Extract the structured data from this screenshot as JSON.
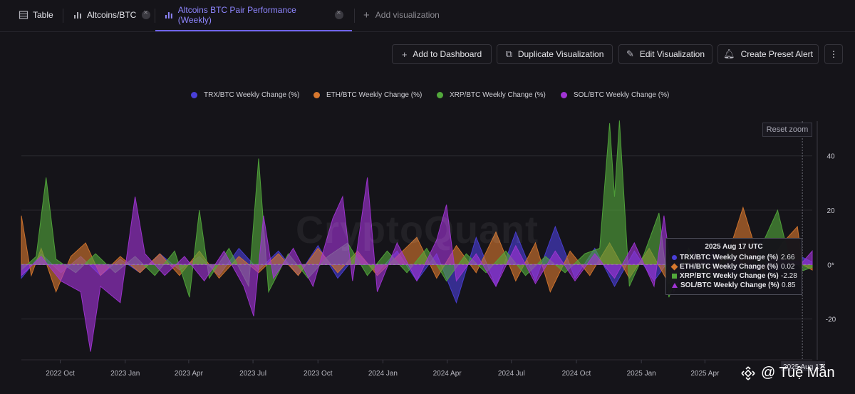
{
  "tabs": [
    {
      "label": "Table",
      "icon": "table-icon"
    },
    {
      "label": "Altcoins/BTC",
      "icon": "bar-chart-icon"
    },
    {
      "label": "Altcoins BTC Pair Performance (Weekly)",
      "icon": "bar-chart-icon",
      "active": true
    },
    {
      "label": "Add visualization",
      "icon": "plus-icon"
    }
  ],
  "toolbar": {
    "add_dashboard": "Add to Dashboard",
    "duplicate": "Duplicate Visualization",
    "edit": "Edit Visualization",
    "alert": "Create Preset Alert",
    "more": "⋮"
  },
  "reset_zoom": "Reset zoom",
  "brand_watermark": "CryptoQuant",
  "watermark": {
    "text": "@ Tuệ Mẫn"
  },
  "tooltip": {
    "title": "2025 Aug 17 UTC",
    "rows": [
      {
        "name": "TRX/BTC Weekly Change (%)",
        "value": "2.66",
        "color": "#4a3fd8"
      },
      {
        "name": "ETH/BTC Weekly Change (%)",
        "value": "0.02",
        "color": "#d6772e"
      },
      {
        "name": "XRP/BTC Weekly Change (%)",
        "value": "-2.28",
        "color": "#52a83b"
      },
      {
        "name": "SOL/BTC Weekly Change (%)",
        "value": "0.85",
        "color": "#a234d6"
      }
    ]
  },
  "chart_data": {
    "type": "area",
    "x_tick_labels": [
      "2022 Oct",
      "2023 Jan",
      "2023 Apr",
      "2023 Jul",
      "2023 Oct",
      "2024 Jan",
      "2024 Apr",
      "2024 Jul",
      "2024 Oct",
      "2025 Jan",
      "2025 Apr"
    ],
    "x_tick_dates": [
      "2022-10-01",
      "2023-01-01",
      "2023-04-01",
      "2023-07-01",
      "2023-10-01",
      "2024-01-01",
      "2024-04-01",
      "2024-07-01",
      "2024-10-01",
      "2025-01-01",
      "2025-04-01"
    ],
    "crosshair_label": "2025 Aug 17",
    "y_ticks": [
      40,
      20,
      0,
      -20
    ],
    "y_tick_labels": [
      "40",
      "20",
      "0*",
      "-20"
    ],
    "ylim": [
      -35,
      58
    ],
    "x_start": "2022-08-07",
    "x_end": "2025-08-31",
    "legend_position": "top",
    "series": [
      {
        "name": "TRX/BTC Weekly Change (%)",
        "color": "#4a3fd8",
        "points": [
          [
            "2022-08-07",
            -5
          ],
          [
            "2022-09-04",
            4
          ],
          [
            "2022-10-02",
            -3
          ],
          [
            "2022-10-30",
            3
          ],
          [
            "2022-11-27",
            -4
          ],
          [
            "2022-12-25",
            2
          ],
          [
            "2023-01-22",
            -3
          ],
          [
            "2023-02-19",
            4
          ],
          [
            "2023-03-19",
            -2
          ],
          [
            "2023-04-16",
            3
          ],
          [
            "2023-05-14",
            -4
          ],
          [
            "2023-06-11",
            6
          ],
          [
            "2023-07-09",
            -2
          ],
          [
            "2023-08-06",
            5
          ],
          [
            "2023-09-03",
            -4
          ],
          [
            "2023-10-01",
            7
          ],
          [
            "2023-10-29",
            -5
          ],
          [
            "2023-11-26",
            4
          ],
          [
            "2023-12-24",
            -3
          ],
          [
            "2024-01-21",
            5
          ],
          [
            "2024-02-18",
            -6
          ],
          [
            "2024-03-17",
            4
          ],
          [
            "2024-04-14",
            -14
          ],
          [
            "2024-05-12",
            10
          ],
          [
            "2024-06-09",
            -8
          ],
          [
            "2024-07-07",
            12
          ],
          [
            "2024-08-04",
            -6
          ],
          [
            "2024-09-01",
            14
          ],
          [
            "2024-09-29",
            -5
          ],
          [
            "2024-10-27",
            6
          ],
          [
            "2024-11-24",
            -8
          ],
          [
            "2024-12-22",
            5
          ],
          [
            "2025-01-19",
            -6
          ],
          [
            "2025-02-16",
            4
          ],
          [
            "2025-03-16",
            -3
          ],
          [
            "2025-04-13",
            5
          ],
          [
            "2025-05-11",
            -4
          ],
          [
            "2025-06-08",
            3
          ],
          [
            "2025-07-06",
            -3
          ],
          [
            "2025-08-17",
            2.66
          ],
          [
            "2025-08-31",
            1
          ]
        ]
      },
      {
        "name": "ETH/BTC Weekly Change (%)",
        "color": "#d6772e",
        "points": [
          [
            "2022-08-07",
            18
          ],
          [
            "2022-08-21",
            -4
          ],
          [
            "2022-09-04",
            6
          ],
          [
            "2022-09-25",
            -10
          ],
          [
            "2022-10-16",
            3
          ],
          [
            "2022-11-06",
            8
          ],
          [
            "2022-11-27",
            -4
          ],
          [
            "2022-12-25",
            3
          ],
          [
            "2023-01-22",
            -3
          ],
          [
            "2023-02-19",
            4
          ],
          [
            "2023-03-19",
            -4
          ],
          [
            "2023-04-16",
            5
          ],
          [
            "2023-05-14",
            -5
          ],
          [
            "2023-06-11",
            3
          ],
          [
            "2023-07-09",
            -3
          ],
          [
            "2023-08-06",
            4
          ],
          [
            "2023-09-03",
            -4
          ],
          [
            "2023-10-01",
            6
          ],
          [
            "2023-10-29",
            -3
          ],
          [
            "2023-11-26",
            5
          ],
          [
            "2023-12-24",
            -4
          ],
          [
            "2024-01-21",
            3
          ],
          [
            "2024-02-18",
            10
          ],
          [
            "2024-03-17",
            -5
          ],
          [
            "2024-04-14",
            7
          ],
          [
            "2024-05-12",
            -3
          ],
          [
            "2024-06-09",
            12
          ],
          [
            "2024-07-07",
            -6
          ],
          [
            "2024-08-04",
            8
          ],
          [
            "2024-08-25",
            -10
          ],
          [
            "2024-09-22",
            5
          ],
          [
            "2024-10-20",
            -4
          ],
          [
            "2024-11-17",
            8
          ],
          [
            "2024-12-15",
            -5
          ],
          [
            "2025-01-12",
            6
          ],
          [
            "2025-02-09",
            -7
          ],
          [
            "2025-03-09",
            3
          ],
          [
            "2025-04-06",
            -3
          ],
          [
            "2025-05-04",
            4
          ],
          [
            "2025-05-25",
            21
          ],
          [
            "2025-06-22",
            -3
          ],
          [
            "2025-07-20",
            8
          ],
          [
            "2025-08-10",
            14
          ],
          [
            "2025-08-17",
            0.02
          ],
          [
            "2025-08-31",
            -2
          ]
        ]
      },
      {
        "name": "XRP/BTC Weekly Change (%)",
        "color": "#52a83b",
        "points": [
          [
            "2022-08-07",
            -2
          ],
          [
            "2022-08-28",
            3
          ],
          [
            "2022-09-11",
            32
          ],
          [
            "2022-09-25",
            2
          ],
          [
            "2022-10-23",
            -3
          ],
          [
            "2022-11-20",
            4
          ],
          [
            "2022-12-18",
            -3
          ],
          [
            "2023-01-15",
            3
          ],
          [
            "2023-02-12",
            -4
          ],
          [
            "2023-03-12",
            5
          ],
          [
            "2023-04-02",
            -12
          ],
          [
            "2023-04-16",
            20
          ],
          [
            "2023-04-30",
            -5
          ],
          [
            "2023-05-28",
            6
          ],
          [
            "2023-06-25",
            -8
          ],
          [
            "2023-07-09",
            39
          ],
          [
            "2023-07-23",
            -10
          ],
          [
            "2023-08-20",
            4
          ],
          [
            "2023-09-17",
            -5
          ],
          [
            "2023-10-15",
            3
          ],
          [
            "2023-11-12",
            8
          ],
          [
            "2023-12-10",
            -4
          ],
          [
            "2024-01-07",
            5
          ],
          [
            "2024-02-04",
            -3
          ],
          [
            "2024-03-03",
            6
          ],
          [
            "2024-03-31",
            -6
          ],
          [
            "2024-04-28",
            4
          ],
          [
            "2024-05-26",
            -3
          ],
          [
            "2024-06-23",
            5
          ],
          [
            "2024-07-21",
            -4
          ],
          [
            "2024-08-18",
            3
          ],
          [
            "2024-09-15",
            -3
          ],
          [
            "2024-10-13",
            4
          ],
          [
            "2024-11-03",
            6
          ],
          [
            "2024-11-17",
            52
          ],
          [
            "2024-11-24",
            25
          ],
          [
            "2024-12-01",
            53
          ],
          [
            "2024-12-15",
            -8
          ],
          [
            "2025-01-05",
            4
          ],
          [
            "2025-01-26",
            19
          ],
          [
            "2025-02-09",
            -12
          ],
          [
            "2025-03-09",
            6
          ],
          [
            "2025-04-06",
            -8
          ],
          [
            "2025-05-04",
            5
          ],
          [
            "2025-06-01",
            -4
          ],
          [
            "2025-07-13",
            20
          ],
          [
            "2025-07-27",
            5
          ],
          [
            "2025-08-17",
            -2.28
          ],
          [
            "2025-08-31",
            -1
          ]
        ]
      },
      {
        "name": "SOL/BTC Weekly Change (%)",
        "color": "#a234d6",
        "points": [
          [
            "2022-08-07",
            -4
          ],
          [
            "2022-09-04",
            3
          ],
          [
            "2022-10-02",
            -6
          ],
          [
            "2022-10-30",
            -10
          ],
          [
            "2022-11-13",
            -32
          ],
          [
            "2022-11-27",
            -8
          ],
          [
            "2022-12-25",
            -14
          ],
          [
            "2023-01-15",
            25
          ],
          [
            "2023-01-29",
            4
          ],
          [
            "2023-02-26",
            -4
          ],
          [
            "2023-03-26",
            3
          ],
          [
            "2023-04-23",
            -6
          ],
          [
            "2023-05-21",
            5
          ],
          [
            "2023-06-18",
            -8
          ],
          [
            "2023-07-02",
            -19
          ],
          [
            "2023-07-16",
            18
          ],
          [
            "2023-07-30",
            -5
          ],
          [
            "2023-08-27",
            6
          ],
          [
            "2023-09-24",
            -8
          ],
          [
            "2023-10-22",
            17
          ],
          [
            "2023-11-05",
            25
          ],
          [
            "2023-11-19",
            -6
          ],
          [
            "2023-12-10",
            32
          ],
          [
            "2023-12-24",
            -10
          ],
          [
            "2024-01-21",
            8
          ],
          [
            "2024-02-18",
            -6
          ],
          [
            "2024-03-17",
            9
          ],
          [
            "2024-03-31",
            22
          ],
          [
            "2024-04-14",
            -6
          ],
          [
            "2024-05-12",
            4
          ],
          [
            "2024-06-09",
            -8
          ],
          [
            "2024-07-07",
            7
          ],
          [
            "2024-08-04",
            -7
          ],
          [
            "2024-09-01",
            5
          ],
          [
            "2024-09-29",
            -6
          ],
          [
            "2024-10-27",
            4
          ],
          [
            "2024-11-24",
            -5
          ],
          [
            "2024-12-22",
            8
          ],
          [
            "2025-01-19",
            -8
          ],
          [
            "2025-02-02",
            18
          ],
          [
            "2025-02-16",
            -10
          ],
          [
            "2025-03-16",
            5
          ],
          [
            "2025-04-13",
            -4
          ],
          [
            "2025-05-11",
            3
          ],
          [
            "2025-06-08",
            -3
          ],
          [
            "2025-07-06",
            2
          ],
          [
            "2025-08-17",
            0.85
          ],
          [
            "2025-08-31",
            5
          ]
        ]
      }
    ]
  }
}
